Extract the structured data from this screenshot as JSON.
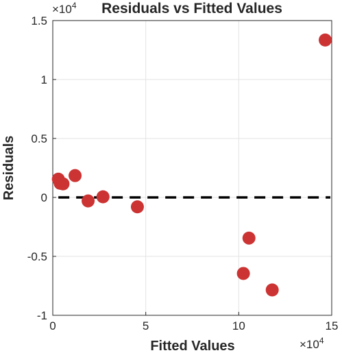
{
  "chart_data": {
    "type": "scatter",
    "title": "Residuals vs Fitted Values",
    "xlabel": "Fitted Values",
    "ylabel": "Residuals",
    "x_exponent_label": "×10",
    "x_exponent_power": "4",
    "y_exponent_label": "×10",
    "y_exponent_power": "4",
    "xlim": [
      0,
      15
    ],
    "ylim": [
      -1,
      1.5
    ],
    "xticks": [
      0,
      5,
      10,
      15
    ],
    "xtick_labels": [
      "0",
      "5",
      "10",
      "15"
    ],
    "yticks": [
      -1,
      -0.5,
      0,
      0.5,
      1,
      1.5
    ],
    "ytick_labels": [
      "-1",
      "-0.5",
      "0",
      "0.5",
      "1",
      "1.5"
    ],
    "grid": true,
    "reference_line": {
      "y": 0,
      "style": "dashed",
      "color": "#000000"
    },
    "marker_color": "#cc3333",
    "points": [
      {
        "x": 0.3,
        "y": 0.155
      },
      {
        "x": 0.4,
        "y": 0.12
      },
      {
        "x": 0.55,
        "y": 0.115
      },
      {
        "x": 1.2,
        "y": 0.185
      },
      {
        "x": 1.9,
        "y": -0.03
      },
      {
        "x": 2.7,
        "y": 0.005
      },
      {
        "x": 4.55,
        "y": -0.08
      },
      {
        "x": 10.25,
        "y": -0.645
      },
      {
        "x": 10.55,
        "y": -0.345
      },
      {
        "x": 11.8,
        "y": -0.785
      },
      {
        "x": 14.65,
        "y": 1.335
      }
    ]
  }
}
